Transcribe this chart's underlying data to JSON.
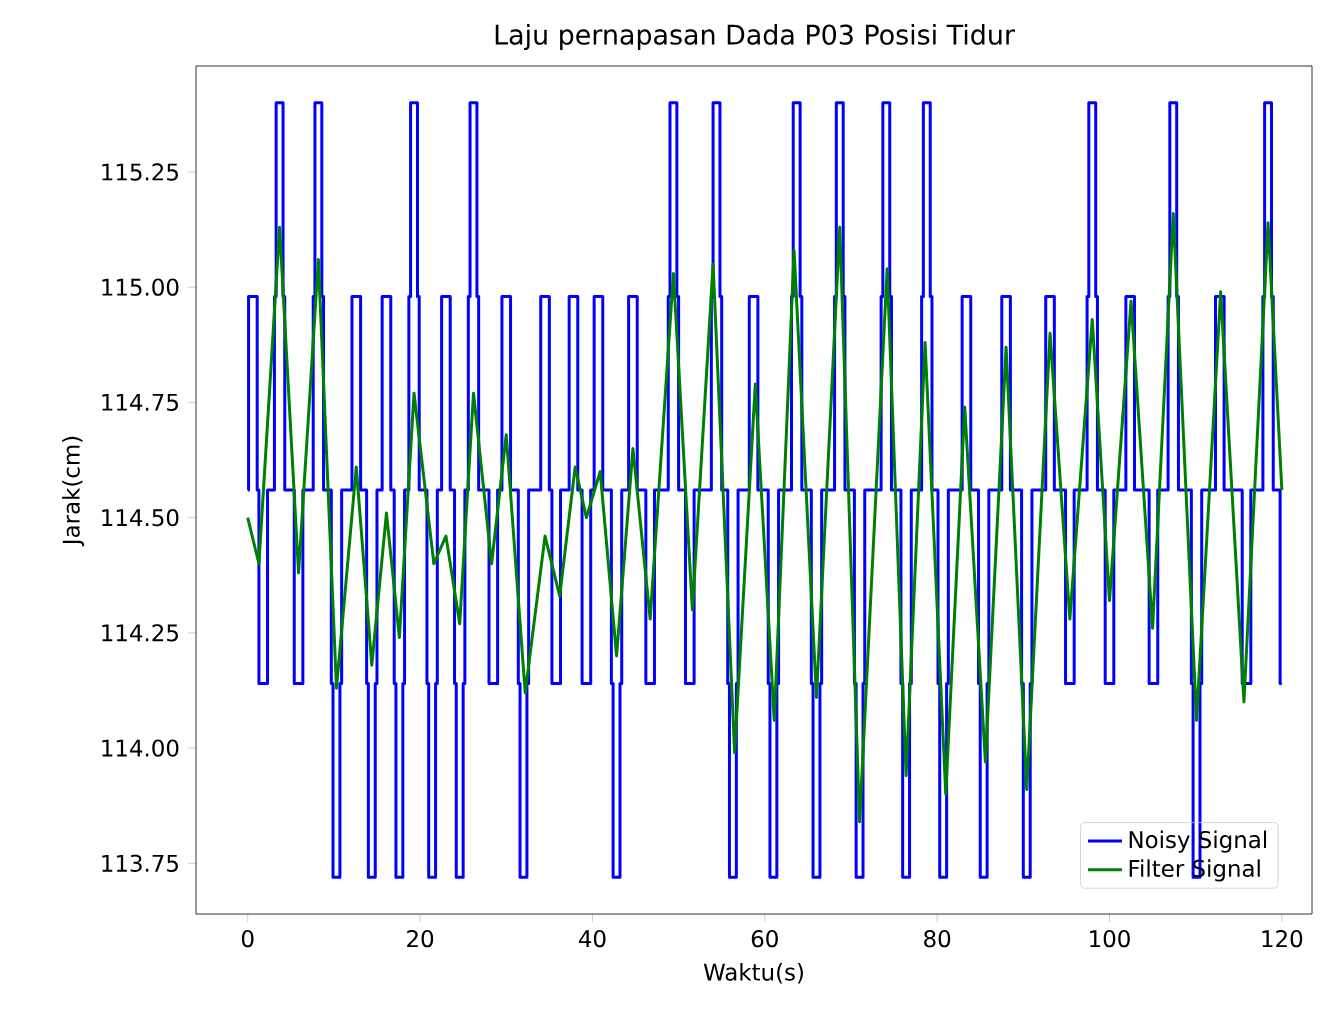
{
  "chart_data": {
    "type": "line",
    "title": "Laju pernapasan Dada P03 Posisi Tidur",
    "xlabel": "Waktu(s)",
    "ylabel": "Jarak(cm)",
    "xlim": [
      -6,
      123.5
    ],
    "ylim": [
      113.64,
      115.48
    ],
    "xticks": [
      0,
      20,
      40,
      60,
      80,
      100,
      120
    ],
    "yticks": [
      113.75,
      {
        "value": 114,
        "label": "114.00"
      },
      114.25,
      {
        "value": 114.5,
        "label": "114.50"
      },
      114.75,
      {
        "value": 115,
        "label": "115.00"
      },
      115.25
    ],
    "legend": "bottom right",
    "series": [
      {
        "name": "Noisy Signal",
        "color": "#0000ff",
        "type": "step",
        "x": [
          0,
          0.1,
          1.1,
          1.3,
          2.3,
          3.1,
          3.3,
          4.1,
          4.3,
          5.4,
          6.4,
          7.6,
          7.8,
          8.6,
          8.8,
          9.7,
          9.9,
          10.7,
          10.9,
          12.1,
          13.1,
          13.8,
          14.0,
          14.8,
          15.0,
          15.6,
          16.6,
          17.0,
          17.2,
          18.0,
          18.2,
          18.7,
          18.9,
          19.7,
          19.9,
          20.8,
          21.0,
          21.8,
          22.0,
          22.5,
          23.5,
          24.0,
          24.2,
          25.0,
          25.2,
          25.6,
          25.8,
          26.6,
          26.8,
          28.0,
          29.0,
          29.5,
          30.5,
          31.4,
          31.6,
          32.4,
          32.6,
          34.0,
          35.0,
          35.3,
          36.3,
          37.3,
          38.3,
          38.8,
          39.8,
          40.2,
          41.2,
          42.2,
          42.4,
          43.2,
          43.4,
          44.2,
          45.2,
          46.2,
          47.2,
          48.8,
          49.0,
          49.8,
          50.0,
          50.8,
          51.8,
          53.8,
          54.0,
          54.8,
          55.0,
          55.7,
          55.9,
          56.7,
          56.9,
          58.2,
          59.2,
          60.4,
          60.6,
          61.4,
          61.6,
          63.1,
          63.3,
          64.1,
          64.3,
          65.4,
          65.6,
          66.4,
          66.6,
          68.1,
          68.3,
          69.1,
          69.3,
          70.4,
          70.6,
          71.4,
          71.6,
          73.5,
          73.7,
          74.5,
          74.7,
          75.8,
          76.0,
          76.8,
          77.0,
          78.2,
          78.4,
          79.2,
          79.4,
          80.1,
          80.3,
          81.1,
          81.3,
          82.9,
          83.9,
          84.8,
          85.0,
          85.8,
          86.0,
          87.5,
          88.5,
          89.8,
          90.0,
          90.8,
          91.0,
          92.6,
          93.6,
          94.9,
          95.9,
          97.4,
          97.6,
          98.4,
          98.6,
          99.5,
          100.5,
          101.9,
          102.9,
          104.6,
          105.6,
          106.8,
          107.0,
          107.8,
          108.0,
          109.5,
          109.7,
          110.5,
          110.7,
          112.3,
          113.3,
          115.4,
          116.4,
          117.8,
          118.0,
          118.8,
          119.0,
          119.8,
          120
        ],
        "values": [
          114.56,
          114.98,
          114.56,
          114.14,
          114.56,
          114.98,
          115.4,
          114.98,
          114.56,
          114.14,
          114.56,
          114.98,
          115.4,
          114.98,
          114.56,
          114.14,
          113.72,
          114.14,
          114.56,
          114.98,
          114.56,
          114.14,
          113.72,
          114.14,
          114.56,
          114.98,
          114.56,
          114.14,
          113.72,
          114.14,
          114.56,
          114.98,
          115.4,
          114.98,
          114.56,
          114.14,
          113.72,
          114.14,
          114.56,
          114.98,
          114.56,
          114.14,
          113.72,
          114.14,
          114.56,
          114.98,
          115.4,
          114.98,
          114.56,
          114.14,
          114.56,
          114.98,
          114.56,
          114.14,
          113.72,
          114.14,
          114.56,
          114.98,
          114.56,
          114.14,
          114.56,
          114.98,
          114.56,
          114.14,
          114.56,
          114.98,
          114.56,
          114.14,
          113.72,
          114.14,
          114.56,
          114.98,
          114.56,
          114.14,
          114.56,
          114.98,
          115.4,
          114.98,
          114.56,
          114.14,
          114.56,
          114.98,
          115.4,
          114.98,
          114.56,
          114.14,
          113.72,
          114.14,
          114.56,
          114.98,
          114.56,
          114.14,
          113.72,
          114.14,
          114.56,
          114.98,
          115.4,
          114.98,
          114.56,
          114.14,
          113.72,
          114.14,
          114.56,
          114.98,
          115.4,
          114.98,
          114.56,
          114.14,
          113.72,
          114.14,
          114.56,
          114.98,
          115.4,
          114.98,
          114.56,
          114.14,
          113.72,
          114.14,
          114.56,
          114.98,
          115.4,
          114.98,
          114.56,
          114.14,
          113.72,
          114.14,
          114.56,
          114.98,
          114.56,
          114.14,
          113.72,
          114.14,
          114.56,
          114.98,
          114.56,
          114.14,
          113.72,
          114.14,
          114.56,
          114.98,
          114.56,
          114.14,
          114.56,
          114.98,
          115.4,
          114.98,
          114.56,
          114.14,
          114.56,
          114.98,
          114.56,
          114.14,
          114.56,
          114.98,
          115.4,
          114.98,
          114.56,
          114.14,
          113.72,
          114.14,
          114.56,
          114.98,
          114.56,
          114.14,
          114.56,
          114.98,
          115.4,
          114.98,
          114.56,
          114.14,
          114.14
        ]
      },
      {
        "name": "Filter Signal",
        "color": "#008000",
        "x": [
          0,
          1.3,
          3.7,
          5.9,
          8.2,
          10.3,
          12.6,
          14.4,
          16.1,
          17.6,
          19.3,
          21.6,
          23.0,
          24.6,
          26.2,
          28.3,
          30.0,
          32.2,
          34.5,
          36.2,
          38.0,
          39.3,
          40.9,
          42.8,
          44.7,
          46.7,
          49.4,
          51.6,
          54.0,
          56.5,
          58.9,
          61.1,
          63.4,
          66.0,
          68.7,
          71.0,
          74.2,
          76.4,
          78.6,
          81.0,
          83.2,
          85.6,
          88.0,
          90.4,
          93.1,
          95.4,
          98.0,
          100.0,
          102.5,
          105.0,
          107.4,
          110.1,
          112.9,
          115.6,
          118.4,
          120
        ],
        "values": [
          114.5,
          114.4,
          115.13,
          114.38,
          115.06,
          114.13,
          114.61,
          114.18,
          114.51,
          114.24,
          114.77,
          114.4,
          114.46,
          114.27,
          114.77,
          114.4,
          114.68,
          114.12,
          114.46,
          114.33,
          114.61,
          114.5,
          114.6,
          114.2,
          114.65,
          114.28,
          115.03,
          114.3,
          115.05,
          113.99,
          114.79,
          114.06,
          115.08,
          114.11,
          115.13,
          113.84,
          115.04,
          113.94,
          114.88,
          113.9,
          114.74,
          113.97,
          114.87,
          113.91,
          114.9,
          114.28,
          114.93,
          114.32,
          114.97,
          114.26,
          115.16,
          114.06,
          114.99,
          114.1,
          115.14,
          114.56
        ]
      }
    ]
  }
}
